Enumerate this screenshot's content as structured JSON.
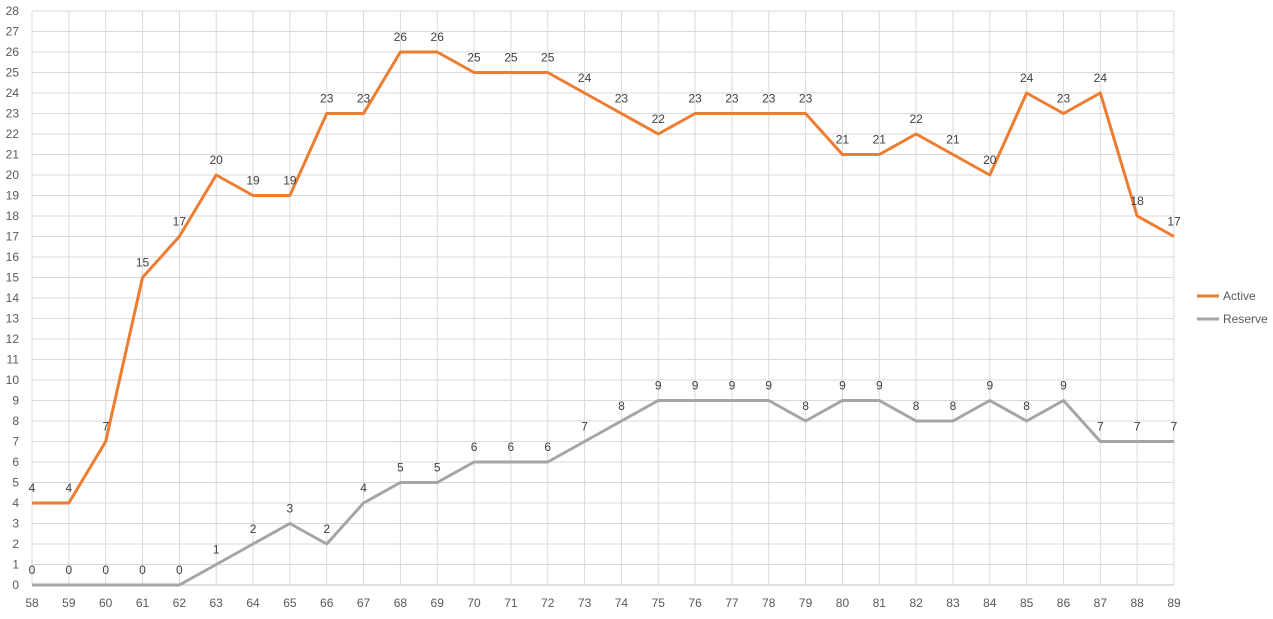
{
  "chart_data": {
    "type": "line",
    "title": "",
    "xlabel": "",
    "ylabel": "",
    "x": [
      58,
      59,
      60,
      61,
      62,
      63,
      64,
      65,
      66,
      67,
      68,
      69,
      70,
      71,
      72,
      73,
      74,
      75,
      76,
      77,
      78,
      79,
      80,
      81,
      82,
      83,
      84,
      85,
      86,
      87,
      88,
      89
    ],
    "ylim": [
      0,
      28
    ],
    "grid": true,
    "legend_position": "right",
    "data_labels": true,
    "series": [
      {
        "name": "Active",
        "color": "#ED7D31",
        "values": [
          4,
          4,
          7,
          15,
          17,
          20,
          19,
          19,
          23,
          23,
          26,
          26,
          25,
          25,
          25,
          24,
          23,
          22,
          23,
          23,
          23,
          23,
          21,
          21,
          22,
          21,
          20,
          24,
          23,
          24,
          18,
          17
        ]
      },
      {
        "name": "Reserve",
        "color": "#A5A5A5",
        "values": [
          0,
          0,
          0,
          0,
          0,
          1,
          2,
          3,
          2,
          4,
          5,
          5,
          6,
          6,
          6,
          7,
          8,
          9,
          9,
          9,
          9,
          8,
          9,
          9,
          8,
          8,
          9,
          8,
          9,
          7,
          7,
          7
        ]
      }
    ]
  }
}
